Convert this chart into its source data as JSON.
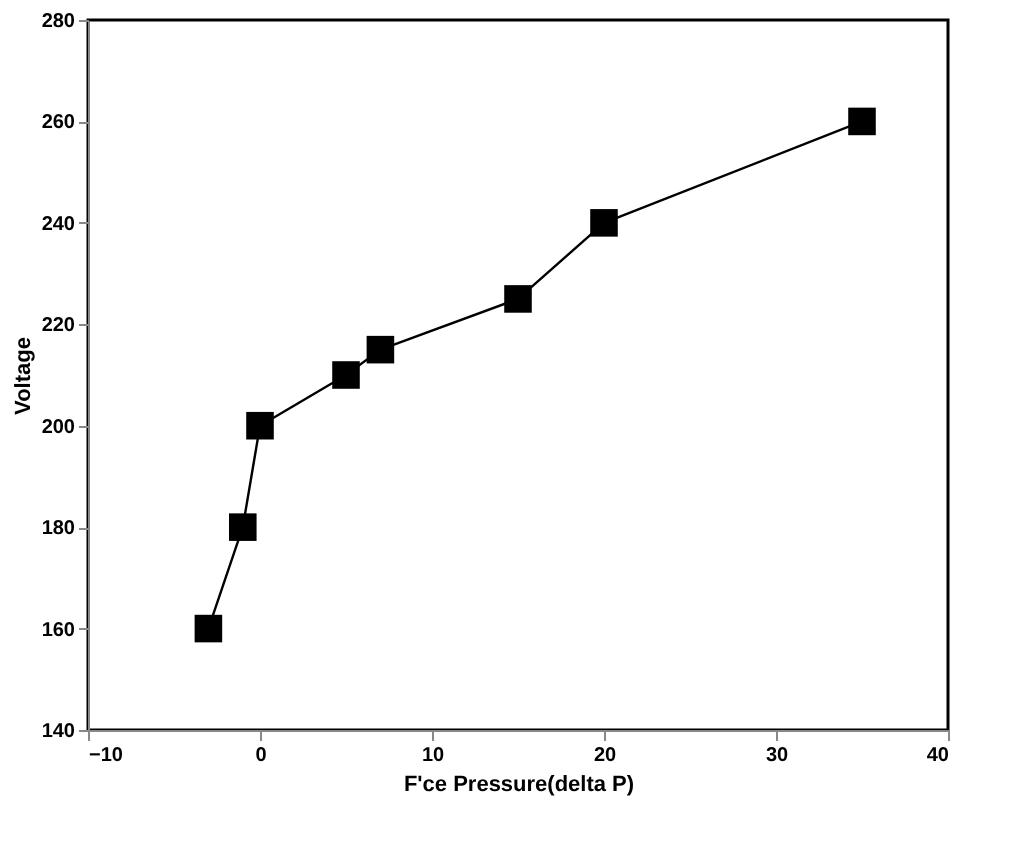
{
  "chart_data": {
    "type": "line",
    "xlabel": "F'ce Pressure(delta P)",
    "ylabel": "Voltage",
    "x": [
      -3,
      -1,
      0,
      5,
      7,
      15,
      20,
      35
    ],
    "series": [
      {
        "color": "#000000",
        "values": [
          160,
          180,
          200,
          210,
          215,
          225,
          240,
          260
        ]
      }
    ],
    "xlim": [
      -10,
      40
    ],
    "xticks": [
      -10,
      0,
      10,
      20,
      30,
      40
    ],
    "ylim": [
      140,
      280
    ],
    "yticks": [
      140,
      160,
      180,
      200,
      220,
      240,
      260,
      280
    ],
    "marker": "square",
    "line_style": "solid",
    "grid": false
  }
}
